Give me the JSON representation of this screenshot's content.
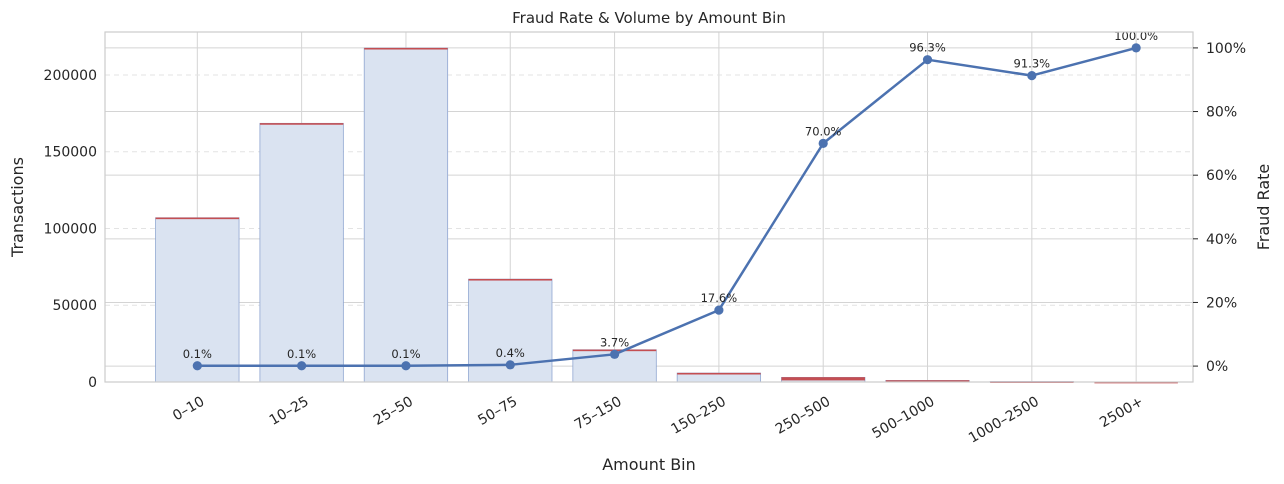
{
  "chart_data": {
    "type": "bar",
    "title": "Fraud Rate & Volume by Amount Bin",
    "xlabel": "Amount Bin",
    "ylabel": "Transactions",
    "y2label": "Fraud Rate",
    "categories": [
      "0–10",
      "10–25",
      "25–50",
      "50–75",
      "75–150",
      "150–250",
      "250–500",
      "500–1000",
      "1000–2500",
      "2500+"
    ],
    "ylim": [
      0,
      228000
    ],
    "y_ticks": [
      0,
      50000,
      100000,
      150000,
      200000
    ],
    "y_tick_labels": [
      "0",
      "50000",
      "100000",
      "150000",
      "200000"
    ],
    "y2lim": [
      -0.05,
      1.05
    ],
    "y2_ticks": [
      0,
      0.2,
      0.4,
      0.6,
      0.8,
      1.0
    ],
    "y2_tick_labels": [
      "0%",
      "20%",
      "40%",
      "60%",
      "80%",
      "100%"
    ],
    "series": [
      {
        "name": "Transactions",
        "kind": "bar",
        "values": [
          107000,
          168500,
          217500,
          67000,
          21000,
          5800,
          3000,
          1000,
          280,
          40
        ]
      },
      {
        "name": "Fraud",
        "kind": "bar",
        "values": [
          110,
          170,
          220,
          270,
          780,
          1020,
          2100,
          960,
          255,
          40
        ]
      },
      {
        "name": "Fraud Rate",
        "kind": "line",
        "axis": "right",
        "values": [
          0.001,
          0.001,
          0.001,
          0.004,
          0.037,
          0.176,
          0.7,
          0.963,
          0.913,
          1.0
        ],
        "labels": [
          "0.1%",
          "0.1%",
          "0.1%",
          "0.4%",
          "3.7%",
          "17.6%",
          "70.0%",
          "96.3%",
          "91.3%",
          "100.0%"
        ]
      }
    ],
    "colors": {
      "total_bar_fill": "#dae3f1",
      "total_bar_edge": "#8fa6d1",
      "fraud_bar": "#c44e52",
      "line": "#4c72b0"
    },
    "grid": true,
    "legend": "none"
  }
}
